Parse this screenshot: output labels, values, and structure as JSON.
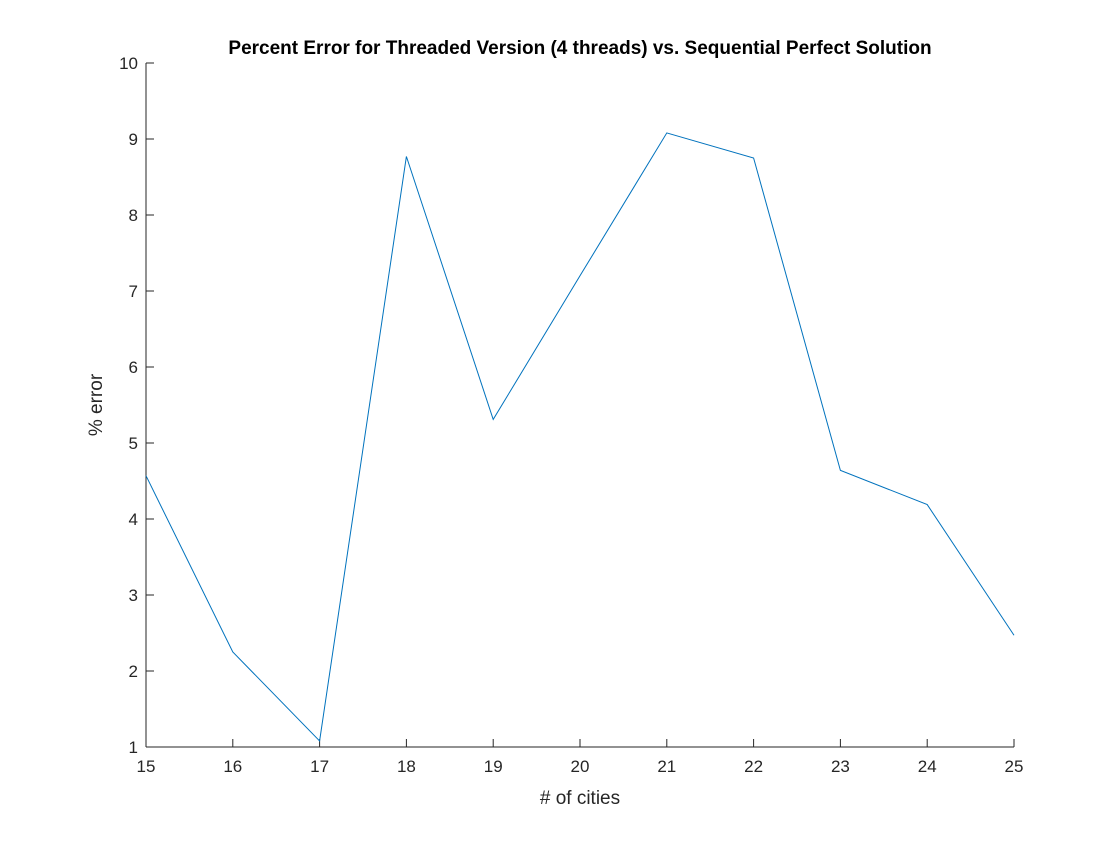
{
  "chart_data": {
    "type": "line",
    "title": "Percent Error for Threaded Version (4 threads) vs. Sequential Perfect Solution",
    "xlabel": "# of cities",
    "ylabel": "% error",
    "x": [
      15,
      16,
      17,
      18,
      19,
      20,
      21,
      22,
      23,
      24,
      25
    ],
    "series": [
      {
        "values": [
          4.57,
          2.25,
          1.08,
          8.77,
          5.31,
          7.2,
          9.08,
          8.75,
          4.64,
          4.19,
          2.47
        ],
        "color": "#0072bd"
      }
    ],
    "xlim": [
      15,
      25
    ],
    "ylim": [
      1,
      10
    ],
    "xticks": [
      15,
      16,
      17,
      18,
      19,
      20,
      21,
      22,
      23,
      24,
      25
    ],
    "yticks": [
      1,
      2,
      3,
      4,
      5,
      6,
      7,
      8,
      9,
      10
    ],
    "grid": false,
    "legend": "none",
    "axis_color": "#262626"
  }
}
